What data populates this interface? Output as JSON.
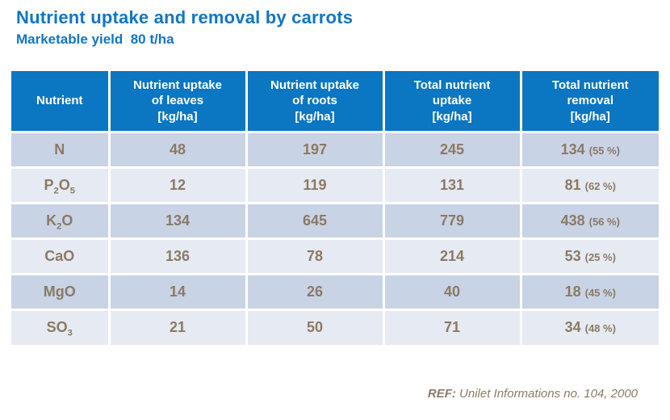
{
  "header": {
    "title": "Nutrient uptake and removal by carrots",
    "subtitle": "Marketable yield  80 t/ha"
  },
  "colors": {
    "title_blue": "#1175C5",
    "header_bg": "#0B76C1",
    "header_text": "#FFFFFF",
    "row_dark": "#C9D3E6",
    "row_light": "#E6EAF3",
    "body_text": "#8B7A64"
  },
  "table": {
    "columns": [
      {
        "key": "nutrient",
        "lines": [
          "Nutrient"
        ]
      },
      {
        "key": "uptake-leaves",
        "lines": [
          "Nutrient uptake",
          "of leaves",
          "[kg/ha]"
        ]
      },
      {
        "key": "uptake-roots",
        "lines": [
          "Nutrient uptake",
          "of roots",
          "[kg/ha]"
        ]
      },
      {
        "key": "total-uptake",
        "lines": [
          "Total nutrient",
          "uptake",
          "[kg/ha]"
        ]
      },
      {
        "key": "total-removal",
        "lines": [
          "Total nutrient",
          "removal",
          "[kg/ha]"
        ]
      }
    ],
    "rows": [
      {
        "nutrient_parts": [
          {
            "t": "N"
          }
        ],
        "leaves": "48",
        "roots": "197",
        "total": "245",
        "removal": "134",
        "removal_pct": "(55 %)"
      },
      {
        "nutrient_parts": [
          {
            "t": "P"
          },
          {
            "t": "2",
            "sub": true
          },
          {
            "t": "O"
          },
          {
            "t": "5",
            "sub": true
          }
        ],
        "leaves": "12",
        "roots": "119",
        "total": "131",
        "removal": "81",
        "removal_pct": "(62 %)"
      },
      {
        "nutrient_parts": [
          {
            "t": "K"
          },
          {
            "t": "2",
            "sub": true
          },
          {
            "t": "O"
          }
        ],
        "leaves": "134",
        "roots": "645",
        "total": "779",
        "removal": "438",
        "removal_pct": "(56 %)"
      },
      {
        "nutrient_parts": [
          {
            "t": "CaO"
          }
        ],
        "leaves": "136",
        "roots": "78",
        "total": "214",
        "removal": "53",
        "removal_pct": "(25 %)"
      },
      {
        "nutrient_parts": [
          {
            "t": "MgO"
          }
        ],
        "leaves": "14",
        "roots": "26",
        "total": "40",
        "removal": "18",
        "removal_pct": "(45 %)"
      },
      {
        "nutrient_parts": [
          {
            "t": "SO"
          },
          {
            "t": "3",
            "sub": true
          }
        ],
        "leaves": "21",
        "roots": "50",
        "total": "71",
        "removal": "34",
        "removal_pct": "(48 %)"
      }
    ]
  },
  "footer": {
    "ref_label": "REF:",
    "ref_text": " Unilet Informations no. 104, 2000"
  },
  "chart_data": {
    "type": "table",
    "title": "Nutrient uptake and removal by carrots",
    "subtitle": "Marketable yield 80 t/ha",
    "columns": [
      "Nutrient",
      "Nutrient uptake of leaves [kg/ha]",
      "Nutrient uptake of roots [kg/ha]",
      "Total nutrient uptake [kg/ha]",
      "Total nutrient removal [kg/ha]"
    ],
    "rows": [
      {
        "nutrient": "N",
        "uptake_leaves": 48,
        "uptake_roots": 197,
        "total_uptake": 245,
        "total_removal": 134,
        "removal_percent": 55
      },
      {
        "nutrient": "P2O5",
        "uptake_leaves": 12,
        "uptake_roots": 119,
        "total_uptake": 131,
        "total_removal": 81,
        "removal_percent": 62
      },
      {
        "nutrient": "K2O",
        "uptake_leaves": 134,
        "uptake_roots": 645,
        "total_uptake": 779,
        "total_removal": 438,
        "removal_percent": 56
      },
      {
        "nutrient": "CaO",
        "uptake_leaves": 136,
        "uptake_roots": 78,
        "total_uptake": 214,
        "total_removal": 53,
        "removal_percent": 25
      },
      {
        "nutrient": "MgO",
        "uptake_leaves": 14,
        "uptake_roots": 26,
        "total_uptake": 40,
        "total_removal": 18,
        "removal_percent": 45
      },
      {
        "nutrient": "SO3",
        "uptake_leaves": 21,
        "uptake_roots": 50,
        "total_uptake": 71,
        "total_removal": 34,
        "removal_percent": 48
      }
    ],
    "reference": "REF: Unilet Informations no. 104, 2000"
  }
}
